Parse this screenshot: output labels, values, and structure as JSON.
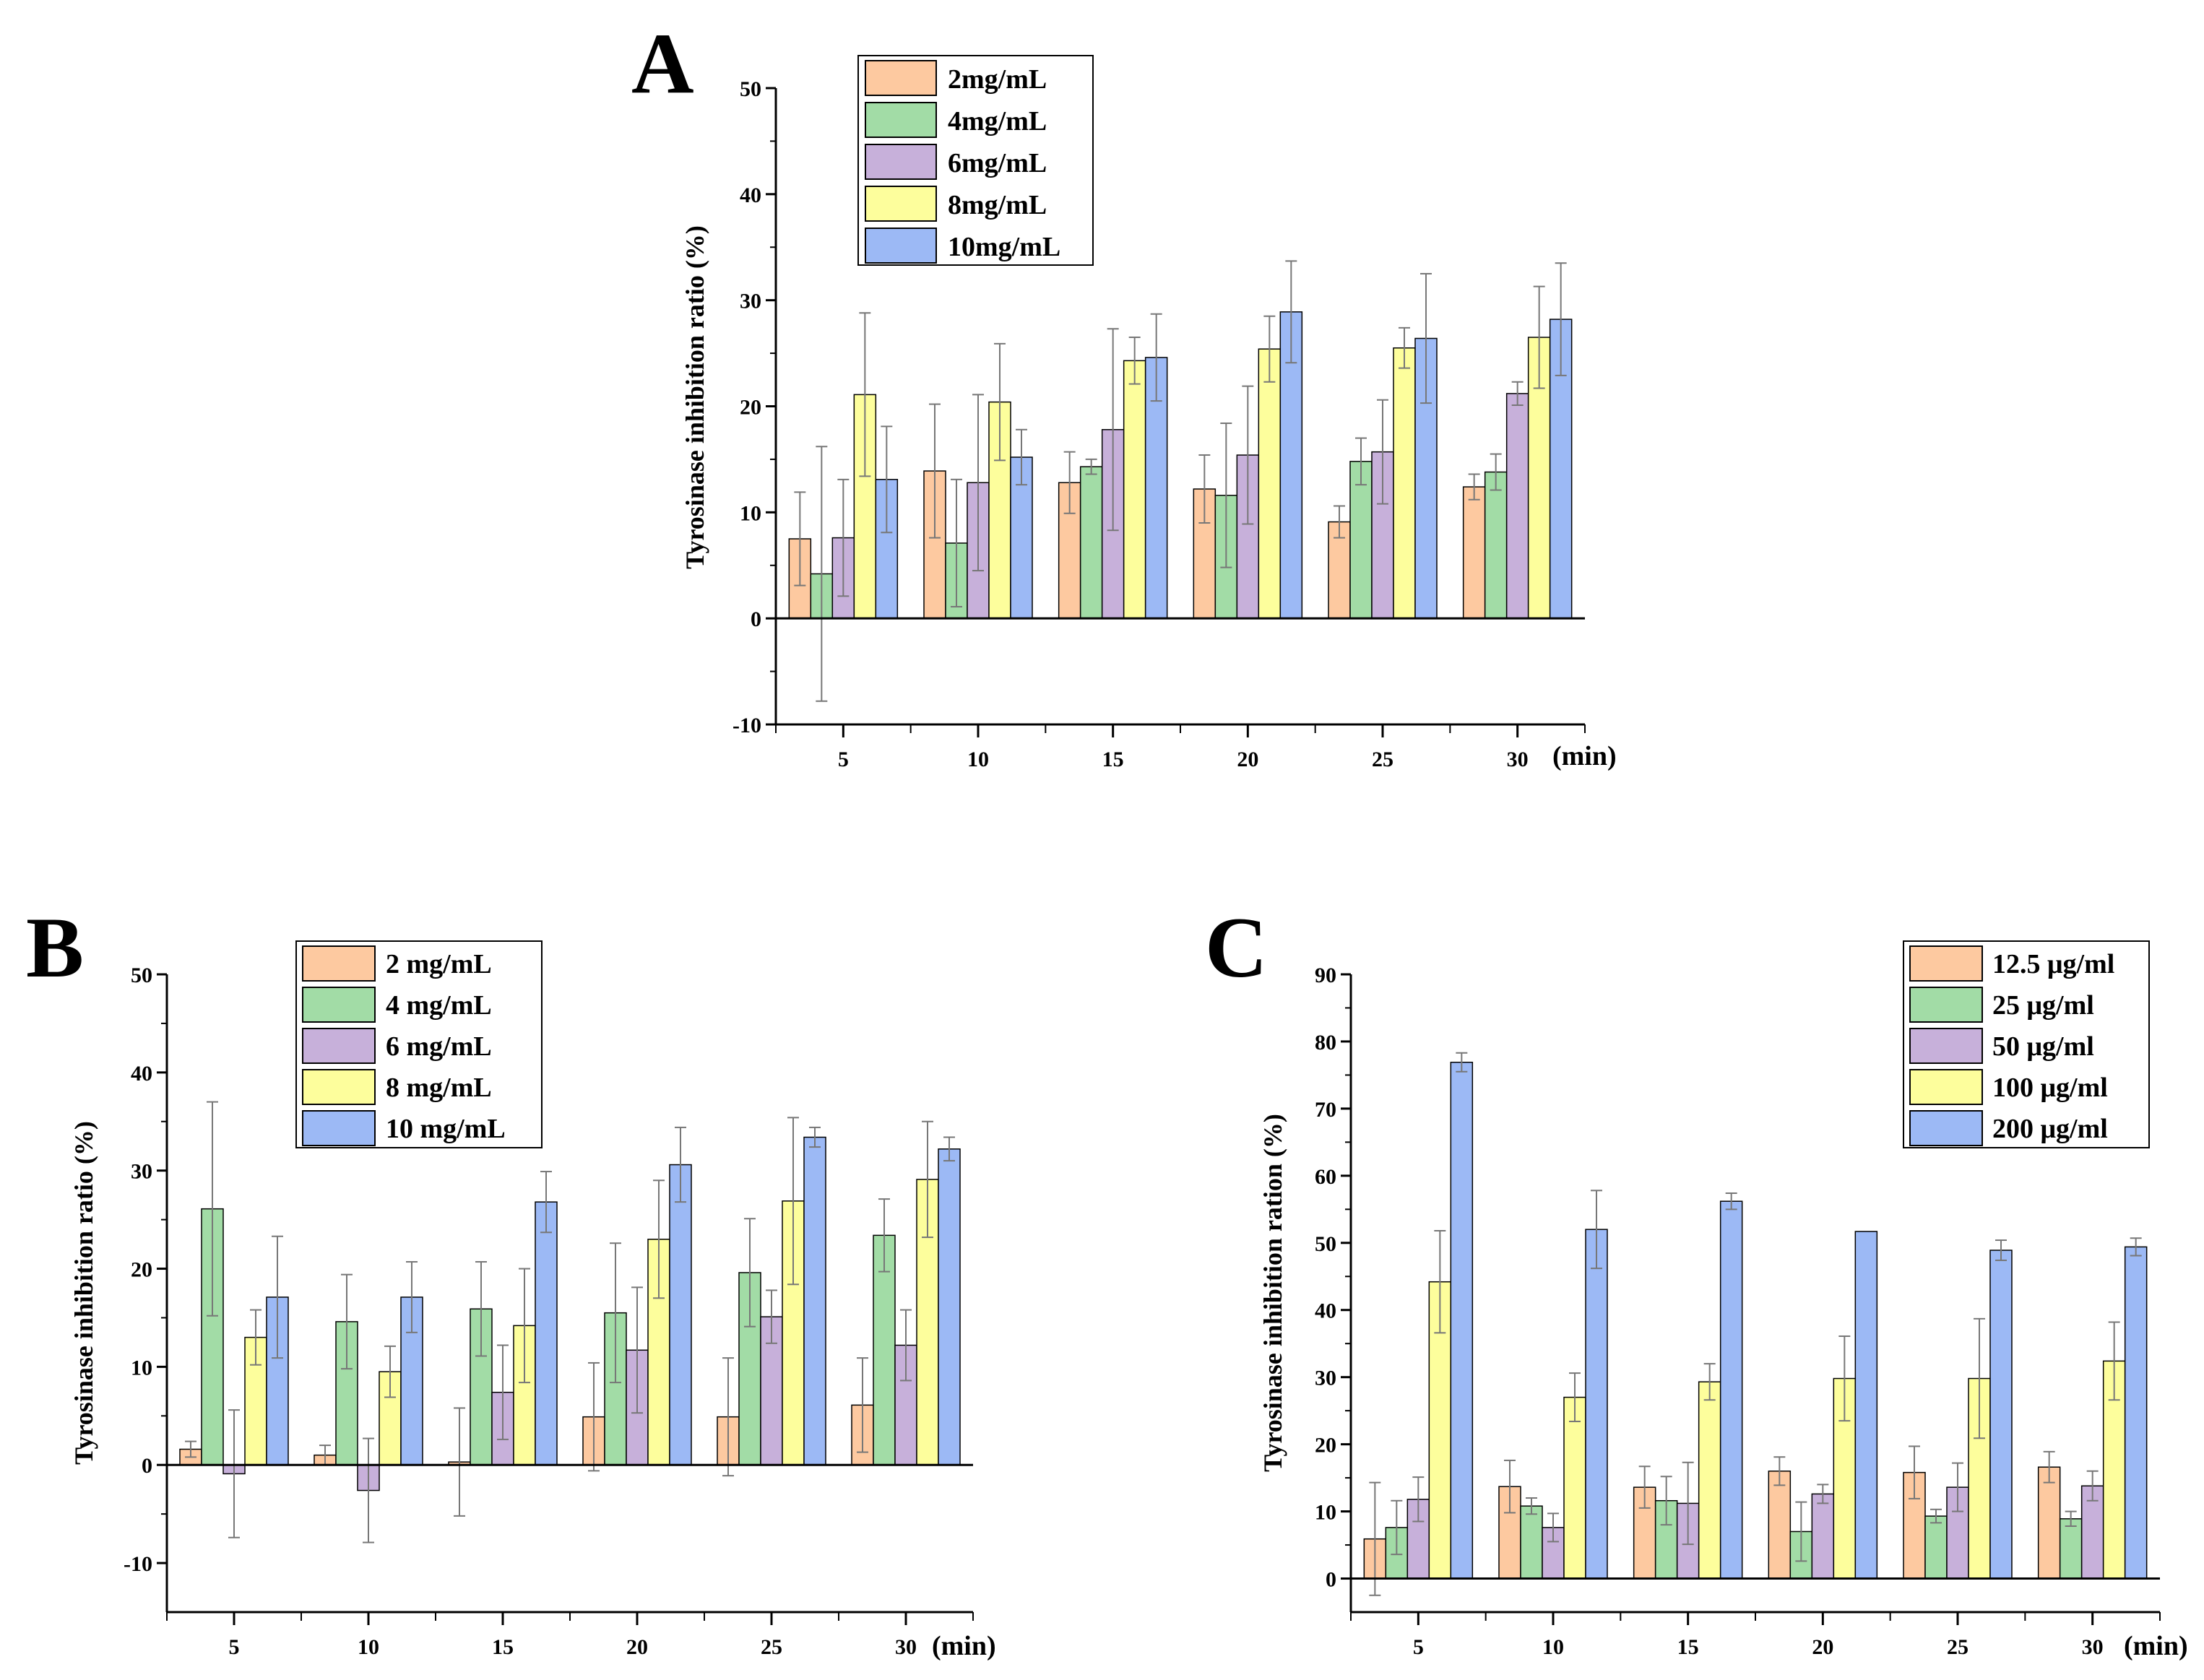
{
  "colors": {
    "c1": "#FDC9A0",
    "c2": "#A2DCA6",
    "c3": "#C7B0DA",
    "c4": "#FDFE9C",
    "c5": "#9CB9F5",
    "axis": "#000000",
    "error": "#777777"
  },
  "chart_data": [
    {
      "panel": "A",
      "type": "bar",
      "ylabel": "Tyrosinase inhibition ratio (%)",
      "xunit": "(min)",
      "categories": [
        "5",
        "10",
        "15",
        "20",
        "25",
        "30"
      ],
      "ylim": [
        -10,
        50
      ],
      "yticks": [
        "-10",
        "0",
        "10",
        "20",
        "30",
        "40",
        "50"
      ],
      "series": [
        {
          "name": "2mg/mL",
          "values": [
            7.5,
            13.9,
            12.8,
            12.2,
            9.1,
            12.4
          ],
          "errors": [
            4.4,
            6.3,
            2.9,
            3.2,
            1.5,
            1.2
          ]
        },
        {
          "name": "4mg/mL",
          "values": [
            4.2,
            7.1,
            14.3,
            11.6,
            14.8,
            13.8
          ],
          "errors": [
            12.0,
            6.0,
            0.7,
            6.8,
            2.2,
            1.7
          ]
        },
        {
          "name": "6mg/mL",
          "values": [
            7.6,
            12.8,
            17.8,
            15.4,
            15.7,
            21.2
          ],
          "errors": [
            5.5,
            8.3,
            9.5,
            6.5,
            4.9,
            1.1
          ]
        },
        {
          "name": "8mg/mL",
          "values": [
            21.1,
            20.4,
            24.3,
            25.4,
            25.5,
            26.5
          ],
          "errors": [
            7.7,
            5.5,
            2.2,
            3.1,
            1.9,
            4.8
          ]
        },
        {
          "name": "10mg/mL",
          "values": [
            13.1,
            15.2,
            24.6,
            28.9,
            26.4,
            28.2
          ],
          "errors": [
            5.0,
            2.6,
            4.1,
            4.8,
            6.1,
            5.3
          ]
        }
      ]
    },
    {
      "panel": "B",
      "type": "bar",
      "ylabel": "Tyrosinase inhibition ratio (%)",
      "xunit": "(min)",
      "categories": [
        "5",
        "10",
        "15",
        "20",
        "25",
        "30"
      ],
      "ylim": [
        -15,
        50
      ],
      "yticks": [
        "-10",
        "0",
        "10",
        "20",
        "30",
        "40",
        "50"
      ],
      "series": [
        {
          "name": "2 mg/mL",
          "values": [
            1.6,
            1.0,
            0.3,
            4.9,
            4.9,
            6.1
          ],
          "errors": [
            0.8,
            1.0,
            5.5,
            5.5,
            6.0,
            4.8
          ]
        },
        {
          "name": "4 mg/mL",
          "values": [
            26.1,
            14.6,
            15.9,
            15.5,
            19.6,
            23.4
          ],
          "errors": [
            10.9,
            4.8,
            4.8,
            7.1,
            5.5,
            3.7
          ]
        },
        {
          "name": "6 mg/mL",
          "values": [
            -0.9,
            -2.6,
            7.4,
            11.7,
            15.1,
            12.2
          ],
          "errors": [
            6.5,
            5.3,
            4.8,
            6.4,
            2.7,
            3.6
          ]
        },
        {
          "name": "8 mg/mL",
          "values": [
            13.0,
            9.5,
            14.2,
            23.0,
            26.9,
            29.1
          ],
          "errors": [
            2.8,
            2.6,
            5.8,
            6.0,
            8.5,
            5.9
          ]
        },
        {
          "name": "10 mg/mL",
          "values": [
            17.1,
            17.1,
            26.8,
            30.6,
            33.4,
            32.2
          ],
          "errors": [
            6.2,
            3.6,
            3.1,
            3.8,
            1.0,
            1.2
          ]
        }
      ]
    },
    {
      "panel": "C",
      "type": "bar",
      "ylabel": "Tyrosinase inhibition ration (%)",
      "xunit": "(min)",
      "categories": [
        "5",
        "10",
        "15",
        "20",
        "25",
        "30"
      ],
      "ylim": [
        -5,
        90
      ],
      "yticks": [
        "0",
        "10",
        "20",
        "30",
        "40",
        "50",
        "60",
        "70",
        "80",
        "90"
      ],
      "series": [
        {
          "name": "12.5 μg/ml",
          "values": [
            5.9,
            13.7,
            13.6,
            16.0,
            15.8,
            16.6
          ],
          "errors": [
            8.4,
            3.9,
            3.1,
            2.1,
            3.9,
            2.3
          ]
        },
        {
          "name": "25 μg/ml",
          "values": [
            7.6,
            10.8,
            11.6,
            7.0,
            9.3,
            8.9
          ],
          "errors": [
            4.0,
            1.2,
            3.6,
            4.4,
            1.0,
            1.1
          ]
        },
        {
          "name": "50 μg/ml",
          "values": [
            11.8,
            7.6,
            11.2,
            12.6,
            13.6,
            13.8
          ],
          "errors": [
            3.3,
            2.1,
            6.1,
            1.4,
            3.6,
            2.2
          ]
        },
        {
          "name": "100 μg/ml",
          "values": [
            44.2,
            27.0,
            29.3,
            29.8,
            29.8,
            32.4
          ],
          "errors": [
            7.6,
            3.6,
            2.7,
            6.3,
            8.9,
            5.8
          ]
        },
        {
          "name": "200 μg/ml",
          "values": [
            76.9,
            52.0,
            56.2,
            51.7,
            48.9,
            49.4
          ],
          "errors": [
            1.4,
            5.8,
            1.2,
            0.0,
            1.5,
            1.3
          ]
        }
      ]
    }
  ]
}
